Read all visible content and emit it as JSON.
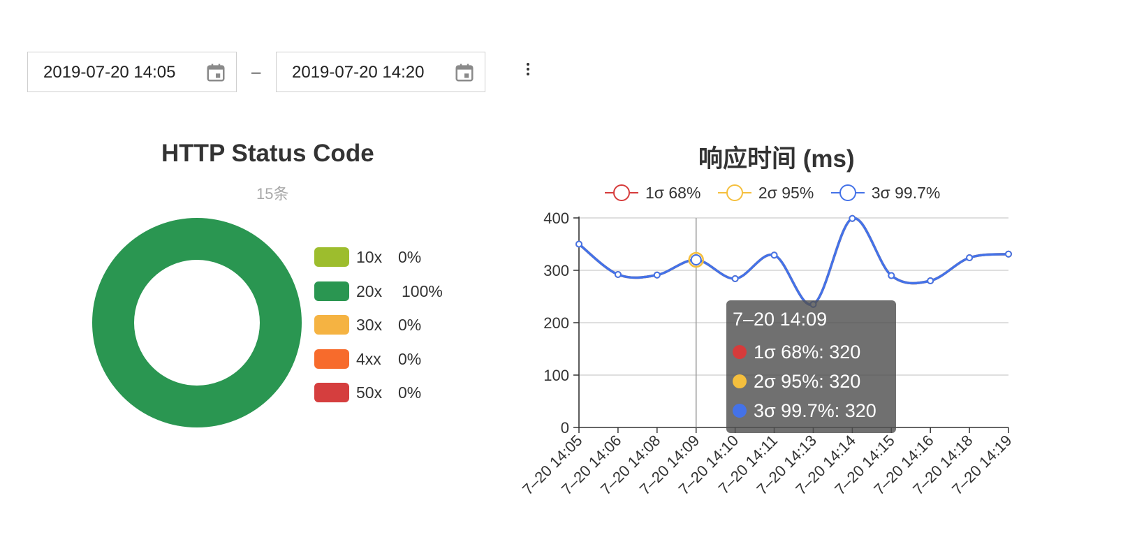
{
  "date_range": {
    "start": "2019-07-20 14:05",
    "separator": "–",
    "end": "2019-07-20 14:20",
    "calendar_icon": "calendar-icon",
    "more_icon": "more-vertical-icon"
  },
  "status_chart": {
    "title": "HTTP Status Code",
    "subtitle": "15条",
    "legend": [
      {
        "name": "10x",
        "percent": "0%",
        "color": "#9dbd2d"
      },
      {
        "name": "20x",
        "percent": "100%",
        "color": "#2a9651"
      },
      {
        "name": "30x",
        "percent": "0%",
        "color": "#f5b342"
      },
      {
        "name": "4xx",
        "percent": "0%",
        "color": "#f76b2c"
      },
      {
        "name": "50x",
        "percent": "0%",
        "color": "#d53e3e"
      }
    ]
  },
  "response_chart": {
    "title": "响应时间 (ms)",
    "tooltip": {
      "title": "7–20 14:09",
      "rows": [
        {
          "label": "1σ 68%: 320",
          "color": "#d63b3b"
        },
        {
          "label": "2σ 95%: 320",
          "color": "#f5bf3d"
        },
        {
          "label": "3σ 99.7%: 320",
          "color": "#4472e8"
        }
      ]
    }
  },
  "chart_data": [
    {
      "type": "pie",
      "title": "HTTP Status Code",
      "subtitle": "15条",
      "categories": [
        "10x",
        "20x",
        "30x",
        "4xx",
        "50x"
      ],
      "values": [
        0,
        100,
        0,
        0,
        0
      ],
      "colors": [
        "#9dbd2d",
        "#2a9651",
        "#f5b342",
        "#f76b2c",
        "#d53e3e"
      ],
      "legend": "right"
    },
    {
      "type": "line",
      "title": "响应时间 (ms)",
      "x": [
        "7–20 14:05",
        "7–20 14:06",
        "7–20 14:08",
        "7–20 14:09",
        "7–20 14:10",
        "7–20 14:11",
        "7–20 14:13",
        "7–20 14:14",
        "7–20 14:15",
        "7–20 14:16",
        "7–20 14:18",
        "7–20 14:19"
      ],
      "series": [
        {
          "name": "1σ 68%",
          "color": "#d63b3b",
          "values": [
            350,
            292,
            291,
            320,
            284,
            329,
            235,
            399,
            290,
            280,
            324,
            331
          ]
        },
        {
          "name": "2σ 95%",
          "color": "#f5bf3d",
          "values": [
            350,
            292,
            291,
            320,
            284,
            329,
            235,
            399,
            290,
            280,
            324,
            331
          ]
        },
        {
          "name": "3σ 99.7%",
          "color": "#4472e8",
          "values": [
            350,
            292,
            291,
            320,
            284,
            329,
            235,
            399,
            290,
            280,
            324,
            331
          ]
        }
      ],
      "ylim": [
        0,
        400
      ],
      "yticks": [
        0,
        100,
        200,
        300,
        400
      ],
      "grid": true,
      "legend": "top-center"
    }
  ]
}
